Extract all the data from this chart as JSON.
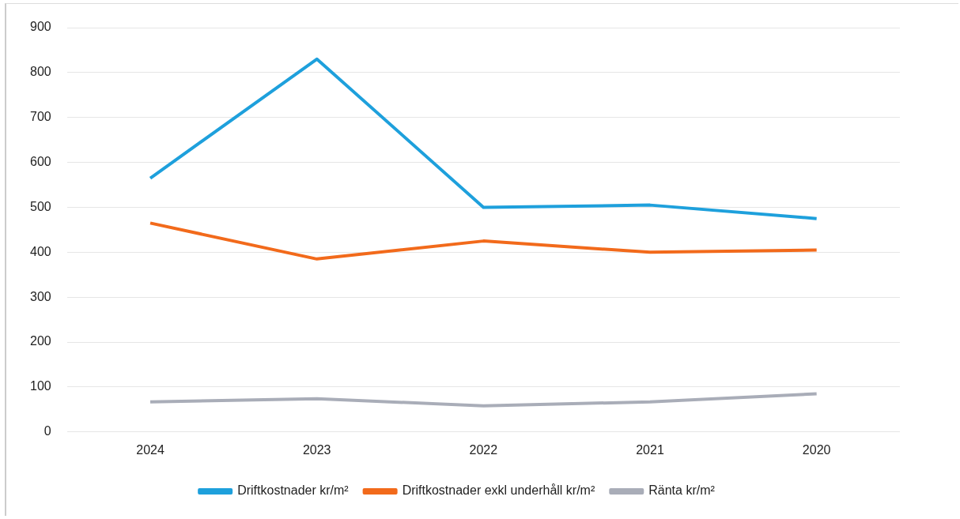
{
  "chart_data": {
    "type": "line",
    "categories": [
      "2024",
      "2023",
      "2022",
      "2021",
      "2020"
    ],
    "series": [
      {
        "name": "Driftkostnader kr/m²",
        "color": "#1ea0dc",
        "values": [
          565,
          830,
          500,
          505,
          475
        ]
      },
      {
        "name": "Driftkostnader exkl underhåll kr/m²",
        "color": "#f26a1b",
        "values": [
          465,
          385,
          425,
          400,
          405
        ]
      },
      {
        "name": "Ränta kr/m²",
        "color": "#a9adb8",
        "values": [
          67,
          74,
          58,
          67,
          85
        ]
      }
    ],
    "ylim": [
      0,
      900
    ],
    "yticks": [
      0,
      100,
      200,
      300,
      400,
      500,
      600,
      700,
      800,
      900
    ],
    "grid": "y",
    "legend": "bottom",
    "marker": "none",
    "line_style": "solid"
  }
}
